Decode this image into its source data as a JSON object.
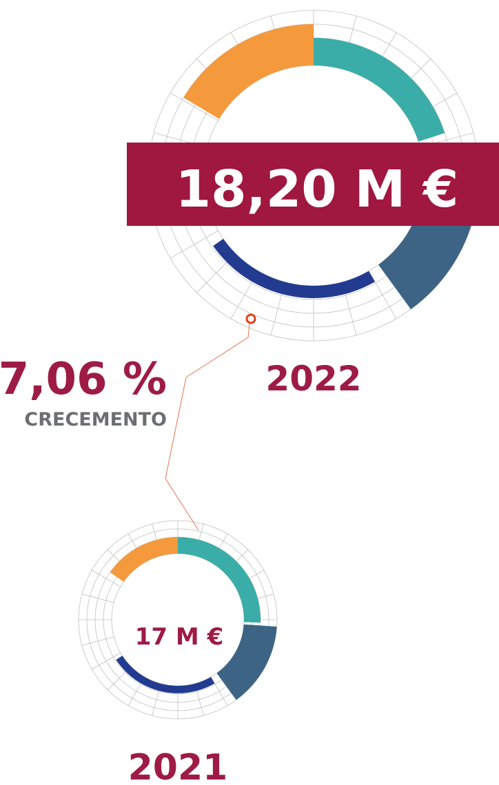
{
  "chart_2022": {
    "amount": "18,20 M €",
    "year": "2022"
  },
  "growth": {
    "value": "7,06 %",
    "label": "CRECEMENTO"
  },
  "chart_2021": {
    "amount": "17 M €",
    "year": "2021"
  }
}
